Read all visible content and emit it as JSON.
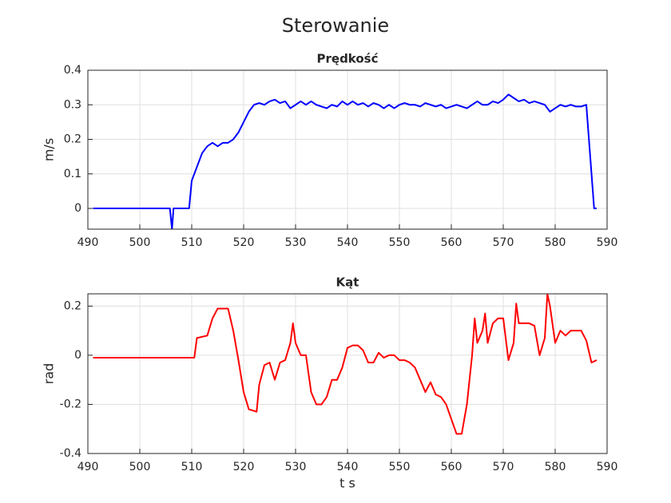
{
  "title": "Sterowanie",
  "chart_data": [
    {
      "type": "line",
      "title": "Prędkość",
      "ylabel": "m/s",
      "grid": true,
      "xlim": [
        490,
        590
      ],
      "xticks": [
        490,
        500,
        510,
        520,
        530,
        540,
        550,
        560,
        570,
        580,
        590
      ],
      "ylim": [
        -0.06,
        0.4
      ],
      "yticks": [
        0,
        0.1,
        0.2,
        0.3,
        0.4
      ],
      "series": [
        {
          "color": "#0000ff",
          "x": [
            491,
            495,
            500,
            505,
            505.8,
            506.2,
            506.5,
            509.5,
            510,
            511,
            512,
            513,
            514,
            515,
            516,
            517,
            518,
            519,
            520,
            521,
            522,
            523,
            524,
            525,
            526,
            527,
            528,
            529,
            530,
            531,
            532,
            533,
            534,
            535,
            536,
            537,
            538,
            539,
            540,
            541,
            542,
            543,
            544,
            545,
            546,
            547,
            548,
            549,
            550,
            551,
            552,
            553,
            554,
            555,
            556,
            557,
            558,
            559,
            560,
            561,
            562,
            563,
            564,
            565,
            566,
            567,
            568,
            569,
            570,
            571,
            572,
            573,
            574,
            575,
            576,
            577,
            578,
            579,
            580,
            581,
            582,
            583,
            584,
            585,
            586,
            587,
            587.5,
            588
          ],
          "values": [
            0,
            0,
            0,
            0,
            0,
            -0.06,
            0,
            0,
            0.08,
            0.12,
            0.16,
            0.18,
            0.19,
            0.18,
            0.19,
            0.19,
            0.2,
            0.22,
            0.25,
            0.28,
            0.3,
            0.305,
            0.3,
            0.31,
            0.315,
            0.305,
            0.31,
            0.29,
            0.3,
            0.31,
            0.3,
            0.31,
            0.3,
            0.295,
            0.29,
            0.3,
            0.295,
            0.31,
            0.3,
            0.31,
            0.3,
            0.305,
            0.295,
            0.305,
            0.3,
            0.29,
            0.3,
            0.29,
            0.3,
            0.305,
            0.3,
            0.3,
            0.295,
            0.305,
            0.3,
            0.295,
            0.3,
            0.29,
            0.295,
            0.3,
            0.295,
            0.29,
            0.3,
            0.31,
            0.3,
            0.3,
            0.31,
            0.305,
            0.315,
            0.33,
            0.32,
            0.31,
            0.315,
            0.305,
            0.31,
            0.305,
            0.3,
            0.28,
            0.29,
            0.3,
            0.295,
            0.3,
            0.295,
            0.295,
            0.3,
            0.1,
            0,
            0
          ]
        }
      ]
    },
    {
      "type": "line",
      "title": "Kąt",
      "ylabel": "rad",
      "xlabel": "t s",
      "grid": true,
      "xlim": [
        490,
        590
      ],
      "xticks": [
        490,
        500,
        510,
        520,
        530,
        540,
        550,
        560,
        570,
        580,
        590
      ],
      "ylim": [
        -0.4,
        0.25
      ],
      "yticks": [
        -0.4,
        -0.2,
        0,
        0.2
      ],
      "series": [
        {
          "color": "#ff0000",
          "x": [
            491,
            500,
            510.5,
            511,
            513,
            514,
            515,
            517,
            518,
            519,
            520,
            521,
            522.5,
            523,
            524,
            525,
            526,
            527,
            528,
            529,
            529.5,
            530,
            531,
            532,
            533,
            534,
            535,
            536,
            537,
            538,
            539,
            540,
            541,
            542,
            543,
            544,
            545,
            546,
            547,
            548,
            549,
            550,
            551,
            552,
            553,
            554,
            555,
            556,
            557,
            558,
            559,
            560,
            561,
            562,
            563,
            564,
            564.5,
            565,
            566,
            566.5,
            567,
            568,
            569,
            570,
            571,
            572,
            572.5,
            573,
            575,
            576,
            577,
            578,
            578.5,
            579,
            580,
            581,
            582,
            583,
            585,
            586,
            587,
            588
          ],
          "values": [
            -0.01,
            -0.01,
            -0.01,
            0.07,
            0.08,
            0.15,
            0.19,
            0.19,
            0.1,
            -0.02,
            -0.15,
            -0.22,
            -0.23,
            -0.12,
            -0.04,
            -0.03,
            -0.1,
            -0.03,
            -0.02,
            0.05,
            0.13,
            0.05,
            0,
            0,
            -0.15,
            -0.2,
            -0.2,
            -0.17,
            -0.1,
            -0.1,
            -0.05,
            0.03,
            0.04,
            0.04,
            0.02,
            -0.03,
            -0.03,
            0.01,
            -0.01,
            0,
            0,
            -0.02,
            -0.02,
            -0.03,
            -0.05,
            -0.1,
            -0.15,
            -0.11,
            -0.16,
            -0.17,
            -0.2,
            -0.26,
            -0.32,
            -0.32,
            -0.2,
            0,
            0.15,
            0.05,
            0.1,
            0.17,
            0.05,
            0.13,
            0.15,
            0.15,
            -0.02,
            0.05,
            0.21,
            0.13,
            0.13,
            0.12,
            0,
            0.07,
            0.25,
            0.2,
            0.05,
            0.1,
            0.08,
            0.1,
            0.1,
            0.06,
            -0.03,
            -0.02
          ]
        }
      ]
    }
  ]
}
